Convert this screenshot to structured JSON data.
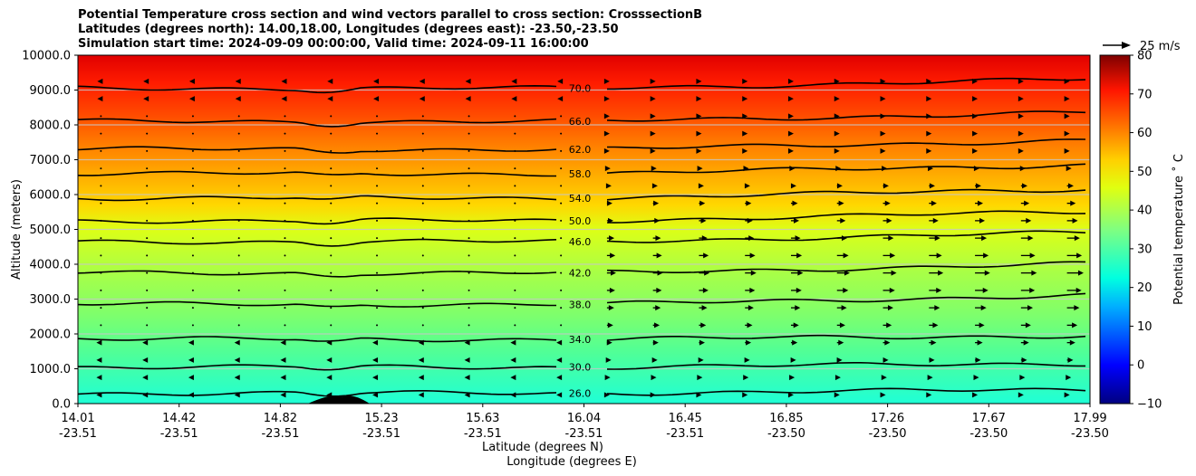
{
  "header": {
    "title_line1": "Potential Temperature cross section and wind vectors parallel to cross section: CrosssectionB",
    "title_line2": "Latitudes (degrees north): 14.00,18.00, Longitudes (degrees east): -23.50,-23.50",
    "title_line3": "Simulation start time: 2024-09-09 00:00:00, Valid time: 2024-09-11 16:00:00"
  },
  "chart_data": {
    "type": "contour",
    "ylabel": "Altitude (meters)",
    "xlabel_lat": "Latitude (degrees N)",
    "xlabel_lon": "Longitude (degrees E)",
    "ylim": [
      0,
      10000
    ],
    "y_ticks": [
      "0.0",
      "1000.0",
      "2000.0",
      "3000.0",
      "4000.0",
      "5000.0",
      "6000.0",
      "7000.0",
      "8000.0",
      "9000.0",
      "10000.0"
    ],
    "y_tick_values": [
      0,
      1000,
      2000,
      3000,
      4000,
      5000,
      6000,
      7000,
      8000,
      9000,
      10000
    ],
    "x_ticks_lat": [
      "14.01",
      "14.42",
      "14.82",
      "15.23",
      "15.63",
      "16.04",
      "16.45",
      "16.85",
      "17.26",
      "17.67",
      "17.99"
    ],
    "x_ticks_lon": [
      "-23.51",
      "-23.51",
      "-23.51",
      "-23.51",
      "-23.51",
      "-23.51",
      "-23.51",
      "-23.50",
      "-23.50",
      "-23.50",
      "-23.50"
    ],
    "xlim": [
      14.01,
      17.99
    ],
    "grid": "horizontal",
    "colorbar": {
      "label": "Potential temperature ˚ C",
      "range": [
        -10,
        80
      ],
      "ticks": [
        "−10",
        "0",
        "10",
        "20",
        "30",
        "40",
        "50",
        "60",
        "70",
        "80"
      ],
      "tick_values": [
        -10,
        0,
        10,
        20,
        30,
        40,
        50,
        60,
        70,
        80
      ]
    },
    "quiver_key": "25 m/s",
    "contour_lines": [
      {
        "level": "26.0",
        "altitude": 300
      },
      {
        "level": "30.0",
        "altitude": 1050
      },
      {
        "level": "34.0",
        "altitude": 1850
      },
      {
        "level": "38.0",
        "altitude": 2850
      },
      {
        "level": "42.0",
        "altitude": 3750
      },
      {
        "level": "46.0",
        "altitude": 4650
      },
      {
        "level": "50.0",
        "altitude": 5250
      },
      {
        "level": "54.0",
        "altitude": 5900
      },
      {
        "level": "58.0",
        "altitude": 6600
      },
      {
        "level": "62.0",
        "altitude": 7300
      },
      {
        "level": "66.0",
        "altitude": 8100
      },
      {
        "level": "70.0",
        "altitude": 9050
      }
    ],
    "terrain_peak": {
      "lat": 15.05,
      "altitude": 200
    },
    "colors": {
      "line": "#000000",
      "grid": "#c8c8c8"
    }
  }
}
